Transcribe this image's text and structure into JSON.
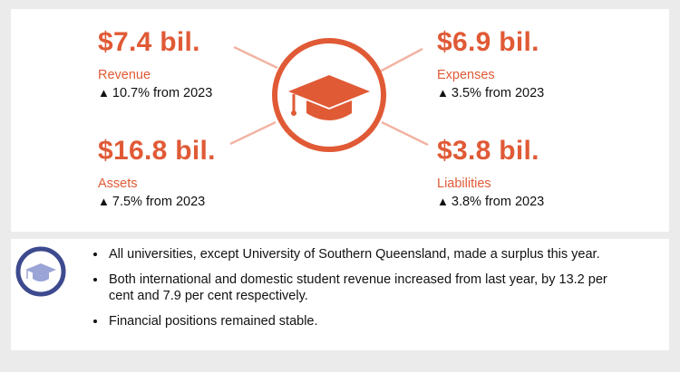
{
  "stats": [
    {
      "amount": "$7.4 bil.",
      "label": "Revenue",
      "change": "10.7% from 2023"
    },
    {
      "amount": "$6.9 bil.",
      "label": "Expenses",
      "change": "3.5% from 2023"
    },
    {
      "amount": "$16.8 bil.",
      "label": "Assets",
      "change": "7.5% from 2023"
    },
    {
      "amount": "$3.8 bil.",
      "label": "Liabilities",
      "change": "3.8% from 2023"
    }
  ],
  "change_arrow": "▲",
  "bullets": [
    "All universities, except University of Southern Queensland, made a surplus this year.",
    "Both international and domestic student revenue increased from last year, by 13.2 per cent and 7.9 per cent respectively.",
    "Financial positions remained stable."
  ],
  "colors": {
    "accent": "#e05a36",
    "accent_light": "#f2b4a3",
    "icon_navy": "#3d4a8f",
    "icon_lavender": "#9ba4d6"
  },
  "icons": {
    "hub": "graduation-cap-icon",
    "bottom": "graduation-cap-icon"
  }
}
